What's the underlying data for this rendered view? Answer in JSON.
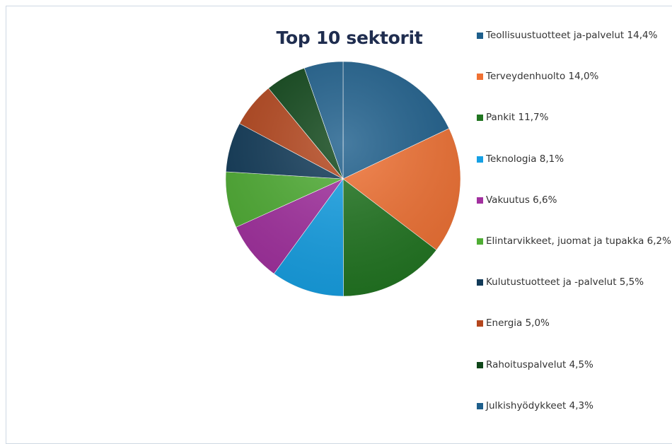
{
  "chart_data": {
    "type": "pie",
    "title": "Top 10 sektorit",
    "legend_position": "right",
    "slices": [
      {
        "label": "Teollisuustuotteet ja-palvelut 14,4%",
        "value": 14.4,
        "color": "#1e5f8c"
      },
      {
        "label": "Terveydenhuolto 14,0%",
        "value": 14.0,
        "color": "#f07133"
      },
      {
        "label": "Pankit 11,7%",
        "value": 11.7,
        "color": "#217521"
      },
      {
        "label": "Teknologia 8,1%",
        "value": 8.1,
        "color": "#16a0e4"
      },
      {
        "label": "Vakuutus 6,6%",
        "value": 6.6,
        "color": "#a2309f"
      },
      {
        "label": "Elintarvikkeet, juomat ja tupakka 6,2%",
        "value": 6.2,
        "color": "#4fad34"
      },
      {
        "label": "Kulutustuotteet ja -palvelut 5,5%",
        "value": 5.5,
        "color": "#113a58"
      },
      {
        "label": "Energia 5,0%",
        "value": 5.0,
        "color": "#b4461d"
      },
      {
        "label": "Rahoituspalvelut 4,5%",
        "value": 4.5,
        "color": "#0f4619"
      },
      {
        "label": "Julkishyödykkeet 4,3%",
        "value": 4.3,
        "color": "#1e5f8c"
      }
    ]
  }
}
